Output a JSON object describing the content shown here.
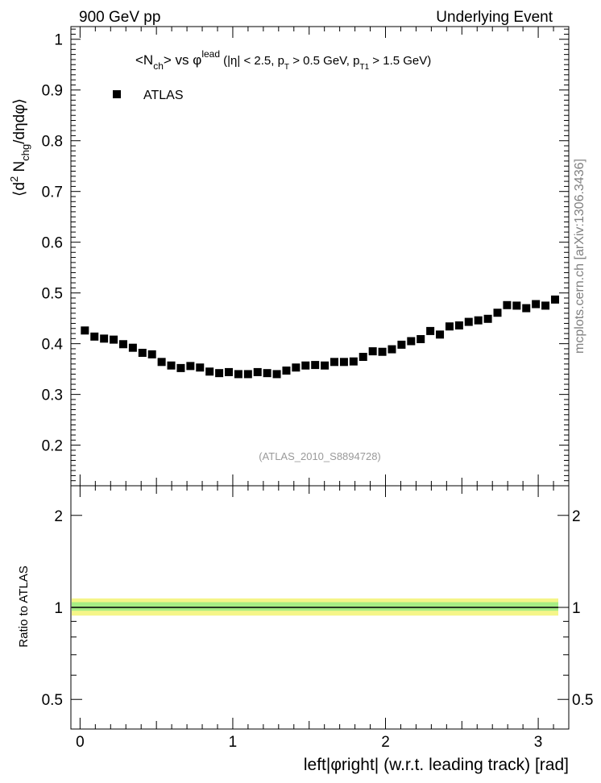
{
  "header": {
    "left_label": "900 GeV pp",
    "right_label": "Underlying Event"
  },
  "side_label": "mcplots.cern.ch [arXiv:1306.3436]",
  "chart_data": [
    {
      "type": "scatter",
      "title_parts": {
        "n_main": "<N",
        "n_sub": "ch",
        "vs": "> vs φ",
        "lead": "lead",
        "cuts_1": " (|η| < 2.5, p",
        "cuts_T_sub": "T",
        "cuts_2": " > 0.5 GeV, p",
        "cuts_T1_sub": "T1",
        "cuts_3": " > 1.5 GeV)"
      },
      "ylabel_parts": {
        "open": "⟨d",
        "sup2": "2",
        "n": " N",
        "chg_sub": "chg",
        "rest": "/dηdφ⟩"
      },
      "legend": [
        "ATLAS"
      ],
      "watermark": "(ATLAS_2010_S8894728)",
      "ylim": [
        0.12,
        1.025
      ],
      "xlim": [
        -0.06,
        3.2
      ],
      "yticks": [
        0.2,
        0.3,
        0.4,
        0.5,
        0.6,
        0.7,
        0.8,
        0.9,
        1
      ],
      "ytick_labels": [
        "0.2",
        "0.3",
        "0.4",
        "0.5",
        "0.6",
        "0.7",
        "0.8",
        "0.9",
        "1"
      ],
      "series": [
        {
          "name": "ATLAS",
          "x": [
            0.0314,
            0.0942,
            0.1571,
            0.2199,
            0.2827,
            0.3456,
            0.4084,
            0.4712,
            0.5341,
            0.5969,
            0.6597,
            0.7226,
            0.7854,
            0.8482,
            0.9111,
            0.9739,
            1.0367,
            1.0996,
            1.1624,
            1.2252,
            1.2881,
            1.3509,
            1.4137,
            1.4765,
            1.5394,
            1.6022,
            1.665,
            1.7279,
            1.7907,
            1.8535,
            1.9164,
            1.9792,
            2.042,
            2.1049,
            2.1677,
            2.2305,
            2.2934,
            2.3562,
            2.419,
            2.4819,
            2.5447,
            2.6075,
            2.6704,
            2.7332,
            2.796,
            2.8588,
            2.9217,
            2.9845,
            3.0473,
            3.1102
          ],
          "y": [
            0.426,
            0.414,
            0.41,
            0.408,
            0.399,
            0.392,
            0.382,
            0.379,
            0.364,
            0.357,
            0.352,
            0.356,
            0.353,
            0.345,
            0.342,
            0.344,
            0.34,
            0.34,
            0.344,
            0.342,
            0.34,
            0.347,
            0.353,
            0.357,
            0.358,
            0.357,
            0.364,
            0.364,
            0.365,
            0.374,
            0.385,
            0.384,
            0.389,
            0.398,
            0.405,
            0.409,
            0.425,
            0.418,
            0.434,
            0.436,
            0.443,
            0.446,
            0.449,
            0.461,
            0.476,
            0.475,
            0.47,
            0.478,
            0.475,
            0.487
          ]
        }
      ]
    },
    {
      "type": "line",
      "ylabel": "Ratio to ATLAS",
      "xlabel": "left|φright| (w.r.t. leading track) [rad]",
      "yscale": "log",
      "ylim": [
        0.4,
        2.5
      ],
      "xlim": [
        -0.06,
        3.2
      ],
      "yticks": [
        0.5,
        1,
        2
      ],
      "ytick_labels": [
        "0.5",
        "1",
        "2"
      ],
      "xticks": [
        0,
        1,
        2,
        3
      ],
      "xtick_labels": [
        "0",
        "1",
        "2",
        "3"
      ],
      "bands": [
        {
          "name": "total uncertainty",
          "low": 0.94,
          "high": 1.07,
          "color": "#f5f589"
        },
        {
          "name": "stat uncertainty",
          "low": 0.975,
          "high": 1.04,
          "color": "#a6ee84"
        }
      ],
      "reference_line": 1,
      "colors": {
        "markers": "#000000",
        "frame": "#000000",
        "watermark": "#9a9a9a",
        "side_label": "#808080"
      }
    }
  ]
}
